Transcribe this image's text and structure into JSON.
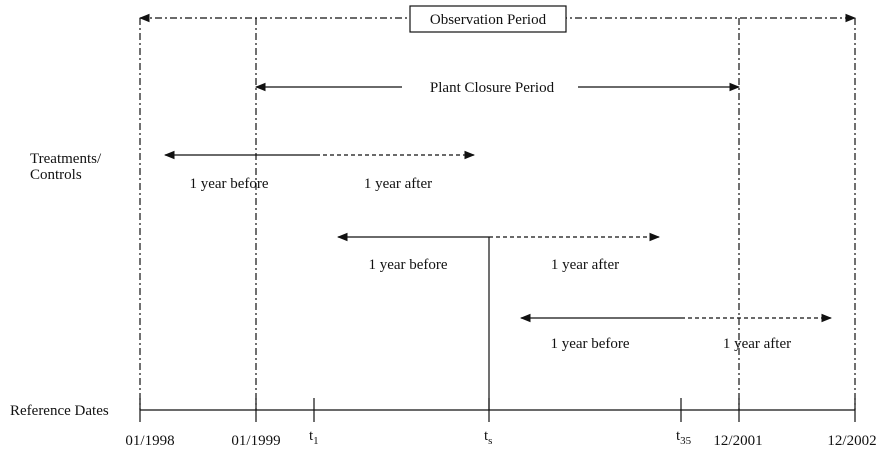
{
  "observation_period": {
    "label": "Observation Period"
  },
  "plant_closure_period": {
    "label": "Plant Closure Period"
  },
  "rows_label": {
    "lines": [
      "Treatments/",
      "Controls"
    ]
  },
  "windows": [
    {
      "before": "1 year before",
      "after": "1 year after"
    },
    {
      "before": "1 year before",
      "after": "1 year after"
    },
    {
      "before": "1 year before",
      "after": "1 year after"
    }
  ],
  "reference_dates": {
    "label": "Reference Dates",
    "dates": [
      "01/1998",
      "01/1999",
      "12/2001",
      "12/2002"
    ],
    "markers": [
      {
        "base": "t",
        "sub": "1"
      },
      {
        "base": "t",
        "sub": "s"
      },
      {
        "base": "t",
        "sub": "35"
      }
    ]
  }
}
